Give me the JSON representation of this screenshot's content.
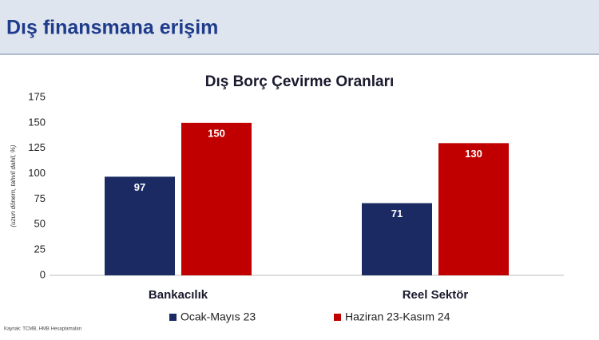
{
  "header": {
    "title": "Dış finansmana erişim"
  },
  "source": "Kaynak: TCMB, HMB Hesaplamaları",
  "chart_data": {
    "type": "bar",
    "title": "Dış Borç Çevirme Oranları",
    "y_label": "(uzun dönem, tahvil dahil, %)",
    "categories": [
      "Bankacılık",
      "Reel Sektör"
    ],
    "series": [
      {
        "name": "Ocak-Mayıs 23",
        "color": "#1b2a63",
        "values": [
          97,
          71
        ]
      },
      {
        "name": "Haziran 23-Kasım 24",
        "color": "#c00000",
        "values": [
          150,
          130
        ]
      }
    ],
    "ylim": [
      0,
      175
    ],
    "yticks": [
      0,
      25,
      50,
      75,
      100,
      125,
      150,
      175
    ],
    "grid": false,
    "legend": "bottom"
  }
}
